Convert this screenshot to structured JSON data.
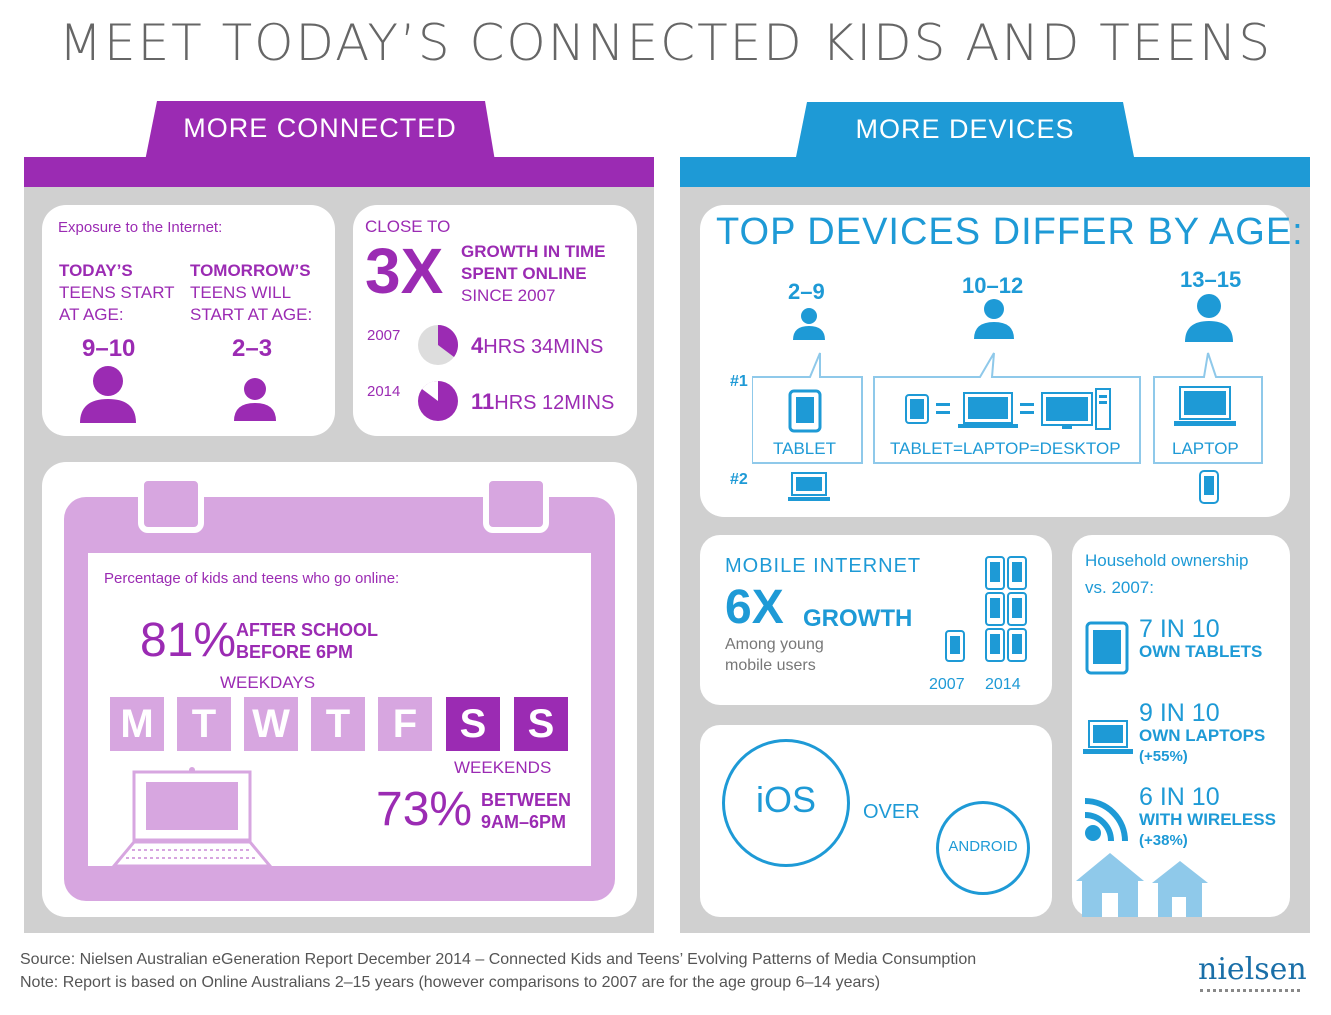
{
  "title": "MEET TODAY’S CONNECTED KIDS AND TEENS",
  "colors": {
    "purple": "#9b2bb3",
    "light_purple": "#d7a6e0",
    "blue": "#1e9ad6",
    "gray": "#d0d0d0"
  },
  "connected": {
    "tab": "MORE CONNECTED",
    "exposure_label": "Exposure to the Internet:",
    "today_head": "TODAY’S",
    "today_text_1": "TEENS START",
    "today_text_2": "AT AGE:",
    "today_age": "9–10",
    "tomorrow_head": "TOMORROW’S",
    "tomorrow_text_1": "TEENS WILL",
    "tomorrow_text_2": "START AT AGE:",
    "tomorrow_age": "2–3",
    "close_to": "CLOSE TO",
    "growth_mult": "3X",
    "growth_line1": "GROWTH IN TIME",
    "growth_line2": "SPENT ONLINE",
    "growth_line3": "SINCE 2007",
    "y2007": "2007",
    "y2007_hours": "4",
    "y2007_hours_unit": "HRS 34MINS",
    "y2014": "2014",
    "y2014_hours": "11",
    "y2014_hours_unit": "HRS 12MINS",
    "pct_label": "Percentage of kids and teens who go online:",
    "weekday_pct": "81%",
    "weekday_line1": "AFTER SCHOOL",
    "weekday_line2": "BEFORE 6PM",
    "weekdays": "WEEKDAYS",
    "days": [
      "M",
      "T",
      "W",
      "T",
      "F",
      "S",
      "S"
    ],
    "weekends": "WEEKENDS",
    "weekend_pct": "73%",
    "weekend_line1": "BETWEEN",
    "weekend_line2": "9AM–6PM"
  },
  "devices": {
    "tab": "MORE DEVICES",
    "top_title": "TOP DEVICES DIFFER BY AGE:",
    "age1": "2–9",
    "age2": "10–12",
    "age3": "13–15",
    "rank1": "#1",
    "rank2": "#2",
    "dev1": "TABLET",
    "dev2": "TABLET=LAPTOP=DESKTOP",
    "dev3": "LAPTOP",
    "mobile_head": "MOBILE INTERNET",
    "mobile_mult": "6X",
    "mobile_growth": "GROWTH",
    "mobile_sub1": "Among young",
    "mobile_sub2": "mobile users",
    "m2007": "2007",
    "m2014": "2014",
    "ios": "iOS",
    "over": "OVER",
    "android": "ANDROID",
    "house_head1": "Household ownership",
    "house_head2": "vs. 2007:",
    "tab_ratio": "7 IN 10",
    "tab_own": "OWN TABLETS",
    "lap_ratio": "9 IN 10",
    "lap_own": "OWN LAPTOPS",
    "lap_change": "(+55%)",
    "wifi_ratio": "6 IN 10",
    "wifi_own": "WITH WIRELESS",
    "wifi_change": "(+38%)"
  },
  "footer": {
    "source": "Source: Nielsen Australian eGeneration Report December 2014 – Connected Kids and Teens’ Evolving Patterns of Media Consumption",
    "note": "Note: Report is based on Online Australians 2–15 years (however comparisons to 2007 are for the age group 6–14 years)",
    "brand": "nielsen"
  }
}
